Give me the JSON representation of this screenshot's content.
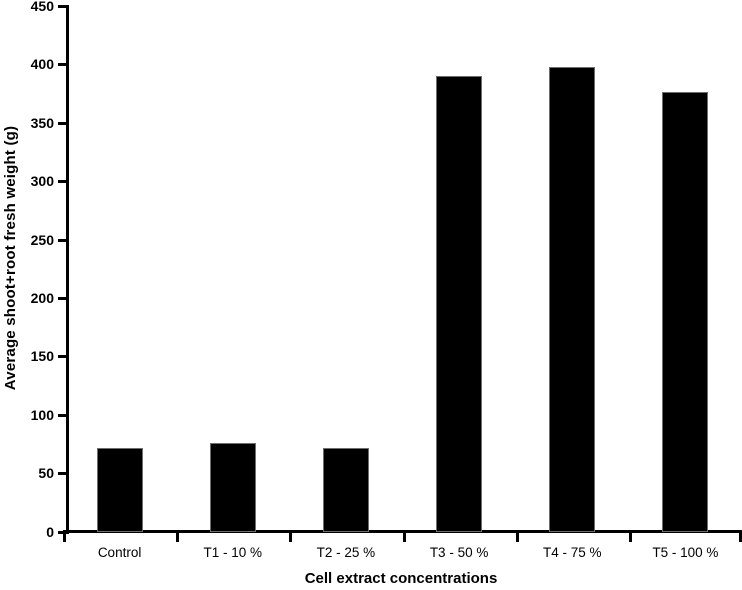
{
  "chart_data": {
    "type": "bar",
    "title": "",
    "xlabel": "Cell extract concentrations",
    "ylabel": "Average shoot+root fresh weight (g)",
    "categories": [
      "Control",
      "T1 - 10 %",
      "T2 - 25 %",
      "T3 - 50 %",
      "T4 - 75 %",
      "T5 - 100 %"
    ],
    "values": [
      72,
      76,
      72,
      390,
      398,
      377
    ],
    "ylim": [
      0,
      450
    ],
    "yticks": [
      0,
      50,
      100,
      150,
      200,
      250,
      300,
      350,
      400,
      450
    ],
    "bar_color": "#000000",
    "axis_color": "#000000",
    "background_color": "#ffffff",
    "grid": false,
    "legend": null
  }
}
